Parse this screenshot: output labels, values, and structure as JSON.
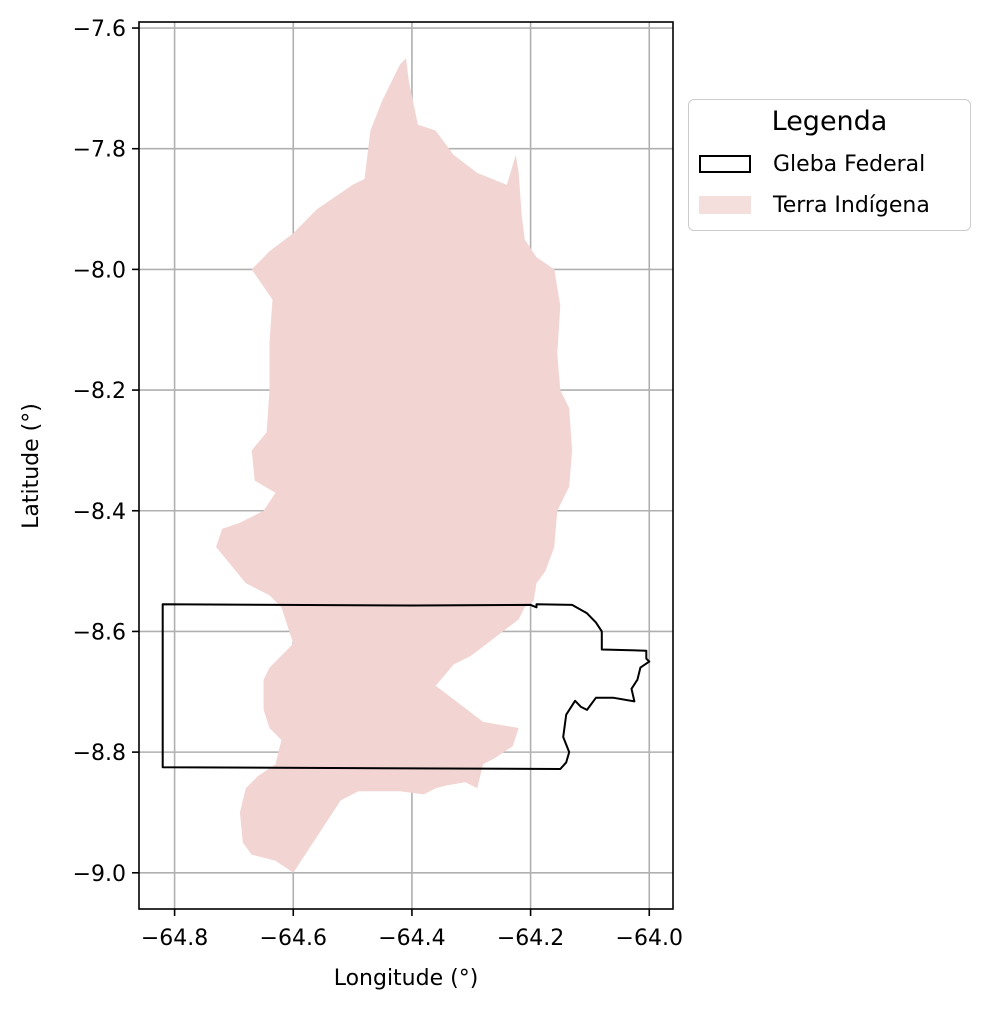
{
  "chart_data": {
    "type": "map",
    "xlabel": "Longitude (°)",
    "ylabel": "Latitude (°)",
    "xlim": [
      -64.86,
      -63.96
    ],
    "ylim": [
      -9.06,
      -7.59
    ],
    "xticks": [
      -64.8,
      -64.6,
      -64.4,
      -64.2,
      -64.0
    ],
    "yticks": [
      -7.6,
      -7.8,
      -8.0,
      -8.2,
      -8.4,
      -8.6,
      -8.8,
      -9.0
    ],
    "xtick_labels": [
      "−64.8",
      "−64.6",
      "−64.4",
      "−64.2",
      "−64.0"
    ],
    "ytick_labels": [
      "−7.6",
      "−7.8",
      "−8.0",
      "−8.2",
      "−8.4",
      "−8.6",
      "−8.8",
      "−9.0"
    ],
    "grid": true,
    "legend": {
      "title": "Legenda",
      "placement": "outside-upper-right",
      "items": [
        {
          "label": "Gleba Federal",
          "style": "outline",
          "color": "#000000"
        },
        {
          "label": "Terra Indígena",
          "style": "fill",
          "color": "#f2d5d3"
        }
      ]
    },
    "layers": [
      {
        "name": "Terra Indígena",
        "color": "#f2d5d3",
        "polygon": [
          [
            -64.47,
            -7.77
          ],
          [
            -64.45,
            -7.72
          ],
          [
            -64.42,
            -7.66
          ],
          [
            -64.41,
            -7.65
          ],
          [
            -64.405,
            -7.69
          ],
          [
            -64.39,
            -7.76
          ],
          [
            -64.36,
            -7.77
          ],
          [
            -64.33,
            -7.81
          ],
          [
            -64.29,
            -7.84
          ],
          [
            -64.24,
            -7.86
          ],
          [
            -64.225,
            -7.81
          ],
          [
            -64.22,
            -7.84
          ],
          [
            -64.215,
            -7.91
          ],
          [
            -64.21,
            -7.95
          ],
          [
            -64.19,
            -7.98
          ],
          [
            -64.16,
            -8.0
          ],
          [
            -64.15,
            -8.06
          ],
          [
            -64.155,
            -8.14
          ],
          [
            -64.15,
            -8.2
          ],
          [
            -64.135,
            -8.23
          ],
          [
            -64.13,
            -8.3
          ],
          [
            -64.135,
            -8.36
          ],
          [
            -64.155,
            -8.4
          ],
          [
            -64.16,
            -8.46
          ],
          [
            -64.175,
            -8.5
          ],
          [
            -64.19,
            -8.52
          ],
          [
            -64.195,
            -8.55
          ],
          [
            -64.21,
            -8.56
          ],
          [
            -64.22,
            -8.58
          ],
          [
            -64.26,
            -8.61
          ],
          [
            -64.3,
            -8.64
          ],
          [
            -64.33,
            -8.655
          ],
          [
            -64.36,
            -8.69
          ],
          [
            -64.32,
            -8.72
          ],
          [
            -64.28,
            -8.75
          ],
          [
            -64.22,
            -8.76
          ],
          [
            -64.23,
            -8.79
          ],
          [
            -64.26,
            -8.81
          ],
          [
            -64.28,
            -8.82
          ],
          [
            -64.29,
            -8.86
          ],
          [
            -64.31,
            -8.85
          ],
          [
            -64.34,
            -8.855
          ],
          [
            -64.36,
            -8.86
          ],
          [
            -64.38,
            -8.87
          ],
          [
            -64.42,
            -8.865
          ],
          [
            -64.49,
            -8.865
          ],
          [
            -64.52,
            -8.88
          ],
          [
            -64.56,
            -8.94
          ],
          [
            -64.6,
            -9.0
          ],
          [
            -64.63,
            -8.98
          ],
          [
            -64.67,
            -8.97
          ],
          [
            -64.685,
            -8.95
          ],
          [
            -64.69,
            -8.9
          ],
          [
            -64.68,
            -8.86
          ],
          [
            -64.66,
            -8.84
          ],
          [
            -64.63,
            -8.82
          ],
          [
            -64.62,
            -8.78
          ],
          [
            -64.64,
            -8.76
          ],
          [
            -64.65,
            -8.73
          ],
          [
            -64.65,
            -8.68
          ],
          [
            -64.64,
            -8.66
          ],
          [
            -64.62,
            -8.64
          ],
          [
            -64.6,
            -8.62
          ],
          [
            -64.61,
            -8.59
          ],
          [
            -64.62,
            -8.56
          ],
          [
            -64.64,
            -8.54
          ],
          [
            -64.68,
            -8.52
          ],
          [
            -64.73,
            -8.46
          ],
          [
            -64.72,
            -8.43
          ],
          [
            -64.69,
            -8.42
          ],
          [
            -64.65,
            -8.4
          ],
          [
            -64.63,
            -8.37
          ],
          [
            -64.665,
            -8.35
          ],
          [
            -64.67,
            -8.3
          ],
          [
            -64.645,
            -8.27
          ],
          [
            -64.64,
            -8.2
          ],
          [
            -64.64,
            -8.12
          ],
          [
            -64.635,
            -8.05
          ],
          [
            -64.67,
            -8.0
          ],
          [
            -64.64,
            -7.97
          ],
          [
            -64.6,
            -7.94
          ],
          [
            -64.56,
            -7.9
          ],
          [
            -64.5,
            -7.86
          ],
          [
            -64.48,
            -7.85
          ]
        ]
      },
      {
        "name": "Gleba Federal",
        "color": "#000000",
        "polygon": [
          [
            -64.82,
            -8.555
          ],
          [
            -64.4,
            -8.557
          ],
          [
            -64.2,
            -8.556
          ],
          [
            -64.19,
            -8.56
          ],
          [
            -64.19,
            -8.555
          ],
          [
            -64.13,
            -8.556
          ],
          [
            -64.105,
            -8.57
          ],
          [
            -64.09,
            -8.585
          ],
          [
            -64.08,
            -8.6
          ],
          [
            -64.08,
            -8.63
          ],
          [
            -64.005,
            -8.632
          ],
          [
            -64.005,
            -8.645
          ],
          [
            -64.0,
            -8.65
          ],
          [
            -64.015,
            -8.66
          ],
          [
            -64.02,
            -8.68
          ],
          [
            -64.03,
            -8.695
          ],
          [
            -64.025,
            -8.716
          ],
          [
            -64.06,
            -8.71
          ],
          [
            -64.09,
            -8.71
          ],
          [
            -64.105,
            -8.73
          ],
          [
            -64.115,
            -8.725
          ],
          [
            -64.125,
            -8.715
          ],
          [
            -64.14,
            -8.738
          ],
          [
            -64.145,
            -8.775
          ],
          [
            -64.135,
            -8.8
          ],
          [
            -64.14,
            -8.817
          ],
          [
            -64.15,
            -8.828
          ],
          [
            -64.82,
            -8.825
          ]
        ]
      }
    ]
  }
}
